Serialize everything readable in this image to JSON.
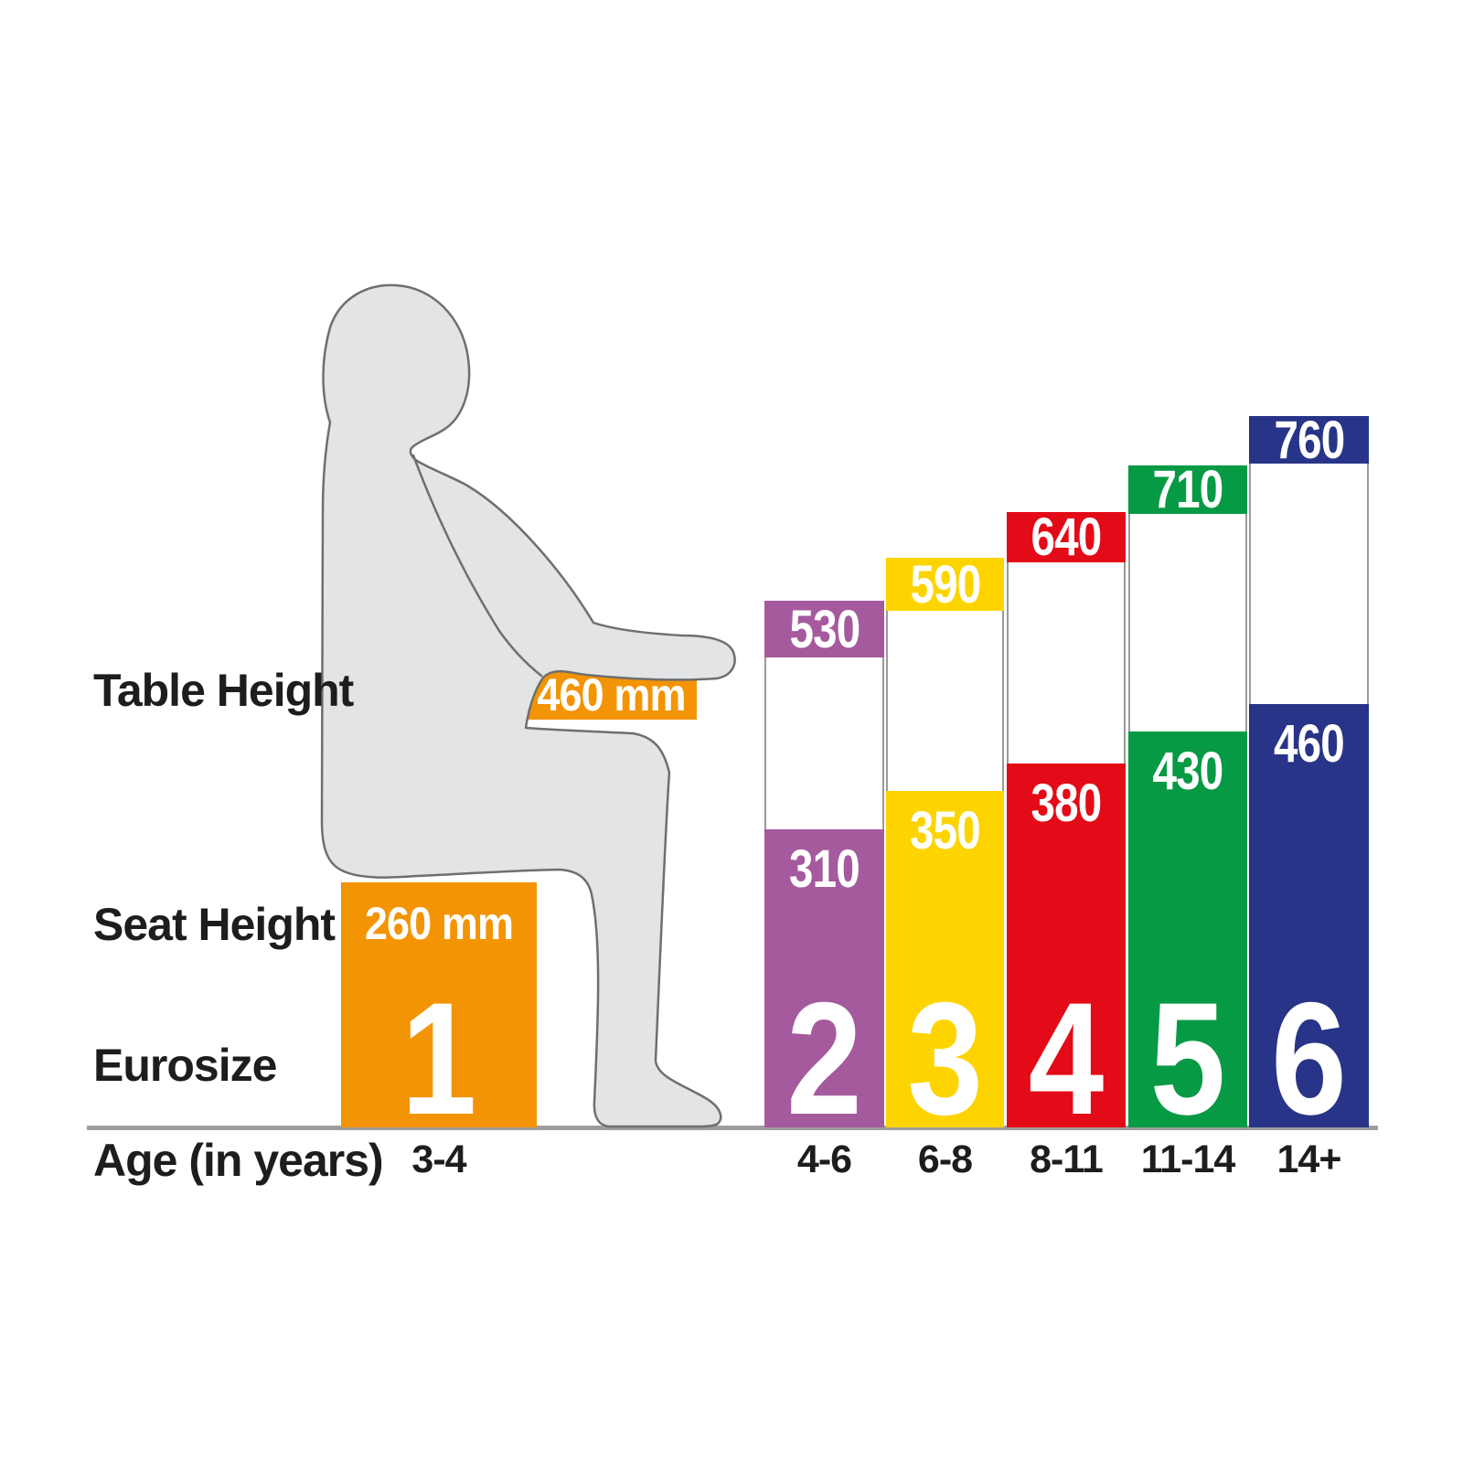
{
  "labels": {
    "table_height": "Table Height",
    "seat_height": "Seat Height",
    "eurosize": "Eurosize",
    "age": "Age (in years)"
  },
  "figure_size": {
    "eurosize": "1",
    "age": "3-4",
    "table_box_value": "460 mm",
    "seat_box_value": "260 mm",
    "color": "#F39404"
  },
  "columns": [
    {
      "eurosize": "2",
      "age": "4-6",
      "table_height": "530",
      "seat_height": "310",
      "color": "#A55A9E"
    },
    {
      "eurosize": "3",
      "age": "6-8",
      "table_height": "590",
      "seat_height": "350",
      "color": "#FDD400"
    },
    {
      "eurosize": "4",
      "age": "8-11",
      "table_height": "640",
      "seat_height": "380",
      "color": "#E30B17"
    },
    {
      "eurosize": "5",
      "age": "11-14",
      "table_height": "710",
      "seat_height": "430",
      "color": "#069A44"
    },
    {
      "eurosize": "6",
      "age": "14+",
      "table_height": "760",
      "seat_height": "460",
      "color": "#283488"
    }
  ],
  "style_colors": {
    "text": "#1d1d1b",
    "baseline_gray": "#9d9d9c",
    "column_outline_gray": "#9b9b9b",
    "silhouette_fill": "#E3E4E6",
    "silhouette_stroke": "#6F6F6F"
  },
  "chart_data": {
    "type": "bar",
    "title": "Eurosize seating guide: table and seat heights (mm) by size and age",
    "categories_label": "Eurosize",
    "categories": [
      "1",
      "2",
      "3",
      "4",
      "5",
      "6"
    ],
    "x_secondary_label": "Age (in years)",
    "x_secondary": [
      "3-4",
      "4-6",
      "6-8",
      "8-11",
      "11-14",
      "14+"
    ],
    "series": [
      {
        "name": "Table Height",
        "unit": "mm",
        "values": [
          460,
          530,
          590,
          640,
          710,
          760
        ]
      },
      {
        "name": "Seat Height",
        "unit": "mm",
        "values": [
          260,
          310,
          350,
          380,
          430,
          460
        ]
      }
    ],
    "bar_colors": [
      "#F39404",
      "#A55A9E",
      "#FDD400",
      "#E30B17",
      "#069A44",
      "#283488"
    ],
    "value_labels_shown": true,
    "grid": false,
    "legend_position": "none",
    "axes_shown": false
  }
}
